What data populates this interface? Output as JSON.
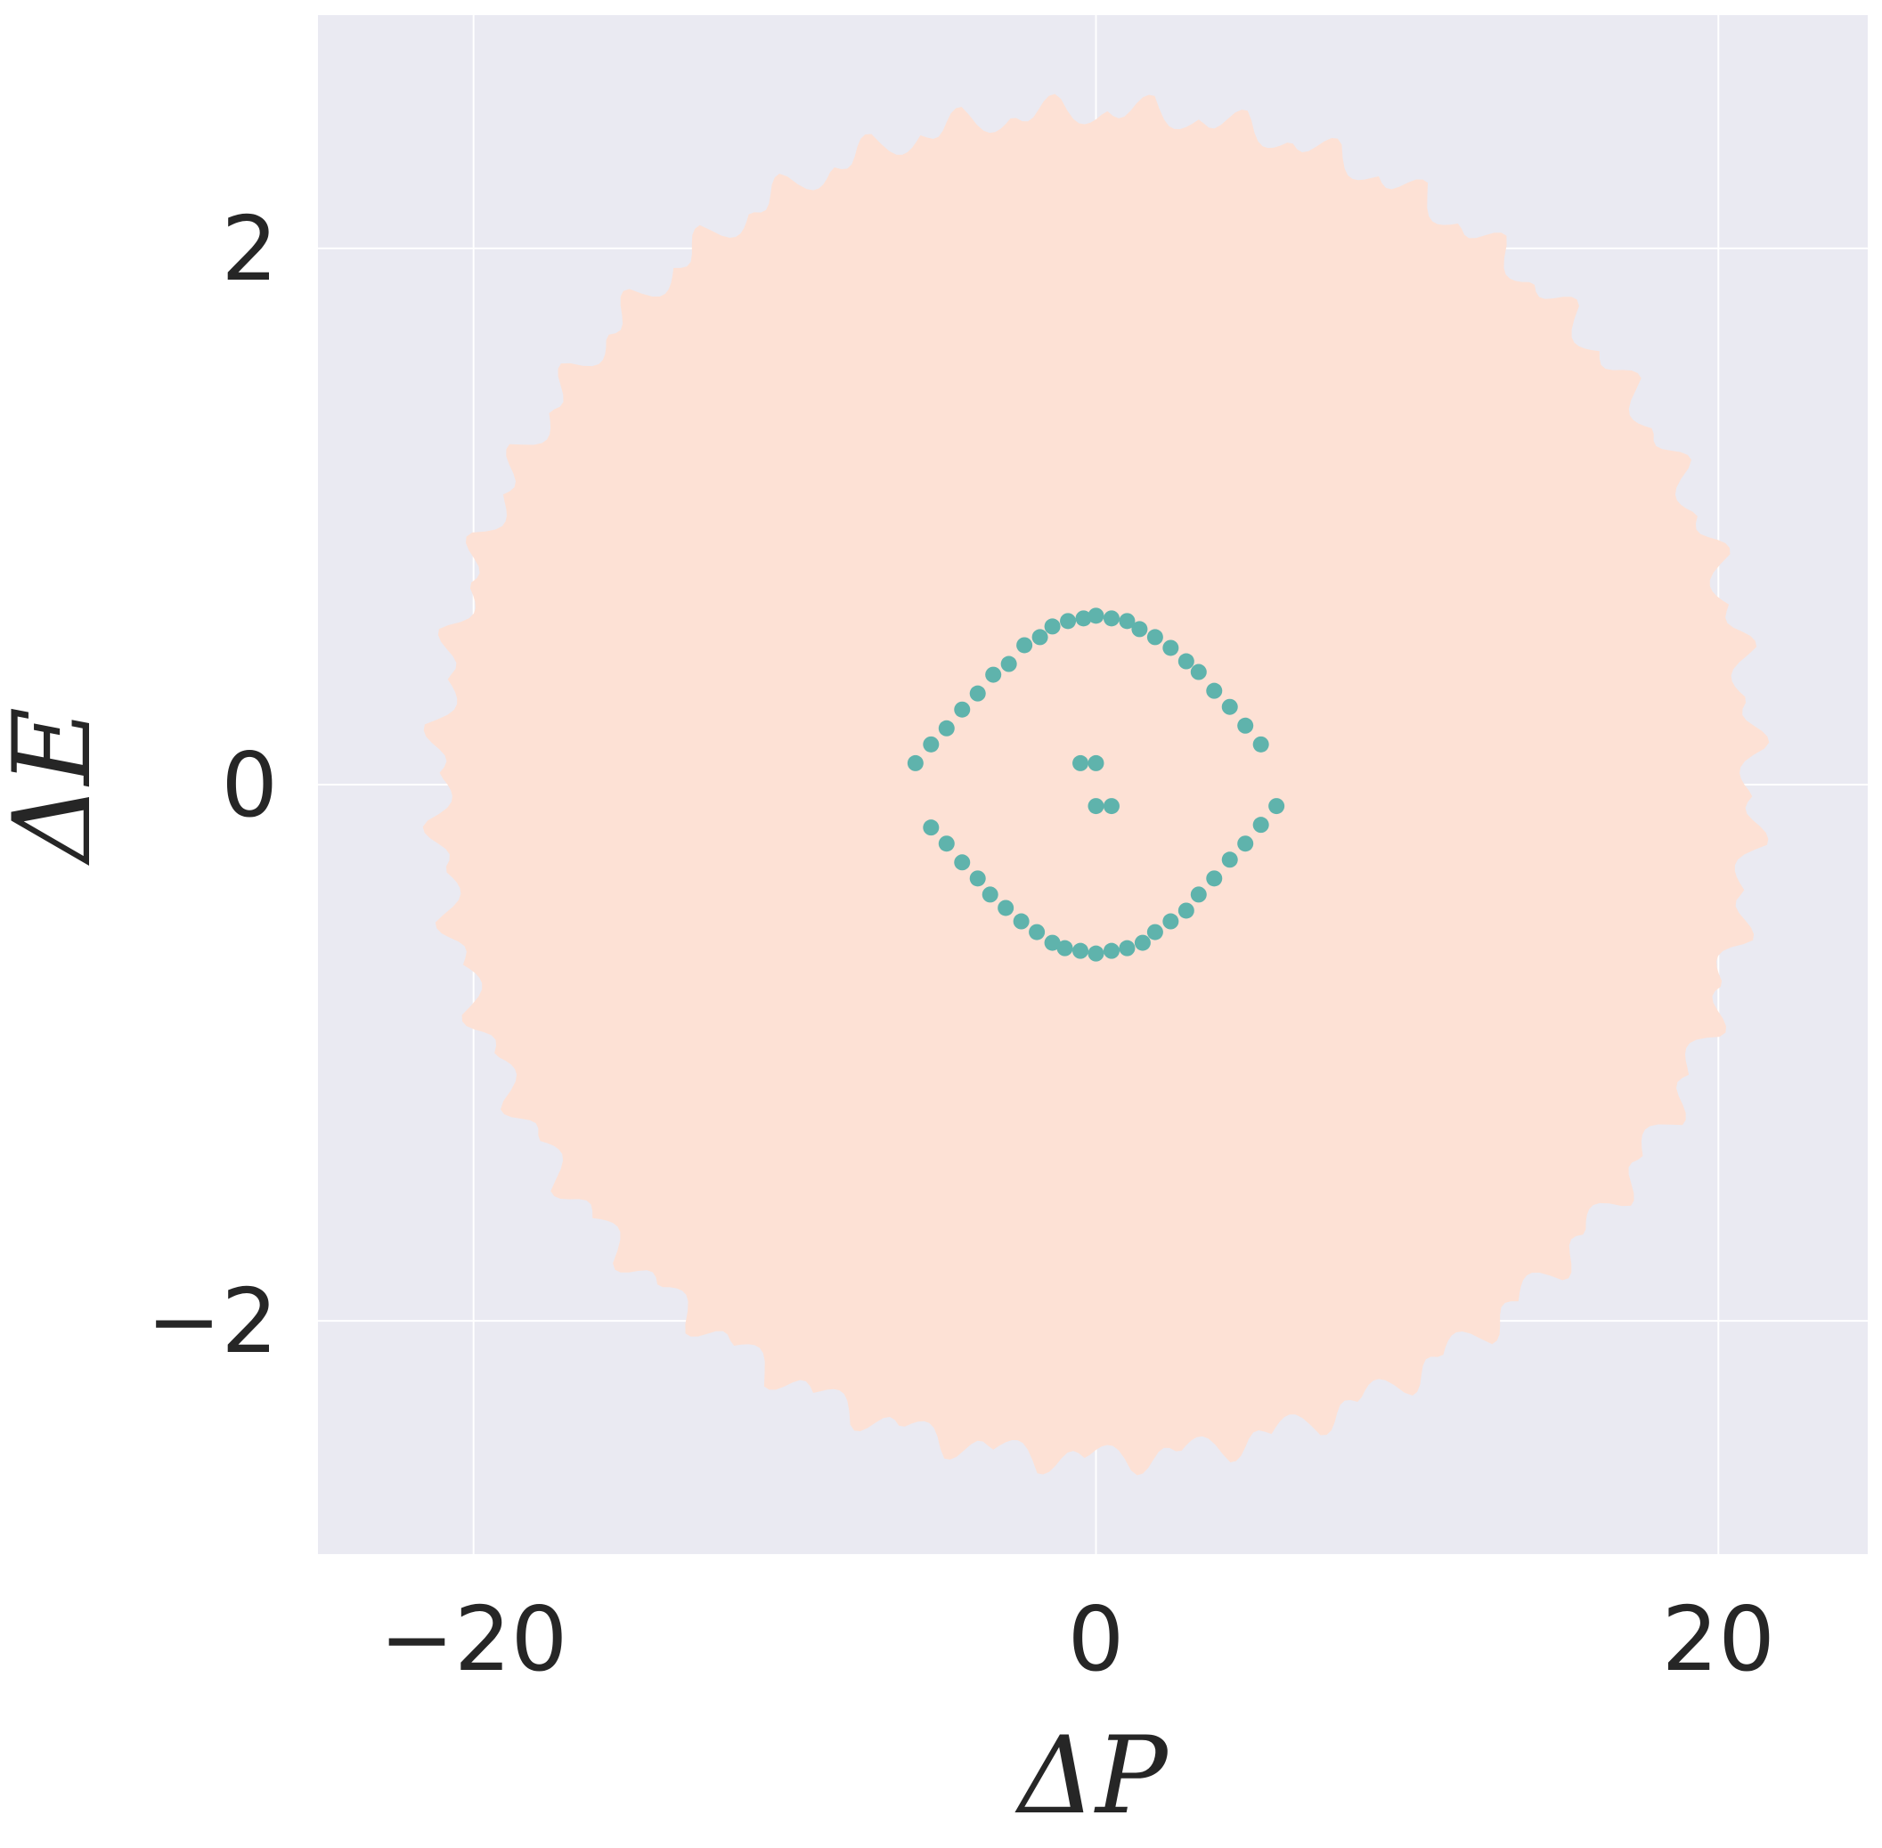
{
  "chart_data": {
    "type": "scatter",
    "title": "",
    "xlabel": "ΔP",
    "ylabel": "ΔE",
    "xlim": [
      -25,
      24.8
    ],
    "ylim": [
      -2.87,
      2.87
    ],
    "xticks": [
      -20,
      0,
      20
    ],
    "xtick_labels": [
      "−20",
      "0",
      "20"
    ],
    "yticks": [
      -2,
      0,
      2
    ],
    "ytick_labels": [
      "−2",
      "0",
      "2"
    ],
    "grid": true,
    "legend": "none",
    "colors": {
      "background": "#eaeaf2",
      "grid": "#ffffff",
      "cloud": "#fde1d5",
      "orbit": "#5fb3ac"
    },
    "cloud_region": {
      "description_values": "dense filled region of points",
      "x_extent": [
        -22.0,
        22.0
      ],
      "y_extent": [
        -2.62,
        2.62
      ]
    },
    "series": [
      {
        "values": [
          [
            -5.8,
            0.08
          ],
          [
            -5.3,
            0.15
          ],
          [
            -4.8,
            0.21
          ],
          [
            -4.3,
            0.28
          ],
          [
            -3.8,
            0.34
          ],
          [
            -3.3,
            0.41
          ],
          [
            -2.8,
            0.45
          ],
          [
            -2.3,
            0.52
          ],
          [
            -1.8,
            0.55
          ],
          [
            -1.4,
            0.59
          ],
          [
            -0.9,
            0.61
          ],
          [
            -0.4,
            0.62
          ],
          [
            0.0,
            0.63
          ],
          [
            0.5,
            0.62
          ],
          [
            1.0,
            0.61
          ],
          [
            1.4,
            0.58
          ],
          [
            1.9,
            0.55
          ],
          [
            2.4,
            0.51
          ],
          [
            2.9,
            0.46
          ],
          [
            3.3,
            0.42
          ],
          [
            3.8,
            0.35
          ],
          [
            4.3,
            0.29
          ],
          [
            4.8,
            0.22
          ],
          [
            5.3,
            0.15
          ],
          [
            5.8,
            -0.08
          ],
          [
            5.3,
            -0.15
          ],
          [
            4.8,
            -0.22
          ],
          [
            4.3,
            -0.28
          ],
          [
            3.8,
            -0.35
          ],
          [
            3.3,
            -0.41
          ],
          [
            2.9,
            -0.47
          ],
          [
            2.4,
            -0.51
          ],
          [
            1.9,
            -0.55
          ],
          [
            1.5,
            -0.59
          ],
          [
            1.0,
            -0.61
          ],
          [
            0.5,
            -0.62
          ],
          [
            0.0,
            -0.63
          ],
          [
            -0.5,
            -0.62
          ],
          [
            -1.0,
            -0.61
          ],
          [
            -1.4,
            -0.59
          ],
          [
            -1.9,
            -0.55
          ],
          [
            -2.4,
            -0.51
          ],
          [
            -2.9,
            -0.46
          ],
          [
            -3.4,
            -0.41
          ],
          [
            -3.8,
            -0.35
          ],
          [
            -4.3,
            -0.29
          ],
          [
            -4.8,
            -0.22
          ],
          [
            -5.3,
            -0.16
          ],
          [
            -0.5,
            0.08
          ],
          [
            0.0,
            0.08
          ],
          [
            0.0,
            -0.08
          ],
          [
            0.5,
            -0.08
          ]
        ]
      }
    ]
  }
}
